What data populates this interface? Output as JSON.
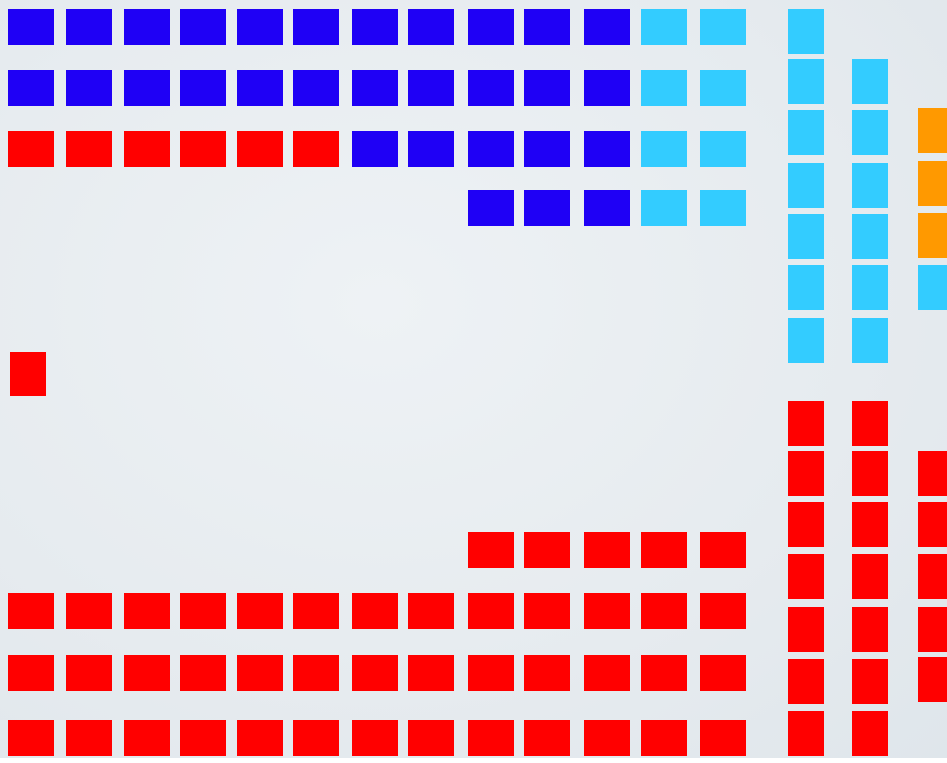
{
  "colors": {
    "B": "#1f00f5",
    "C": "#33ccff",
    "R": "#ff0000",
    "O": "#ff9900"
  }
}
